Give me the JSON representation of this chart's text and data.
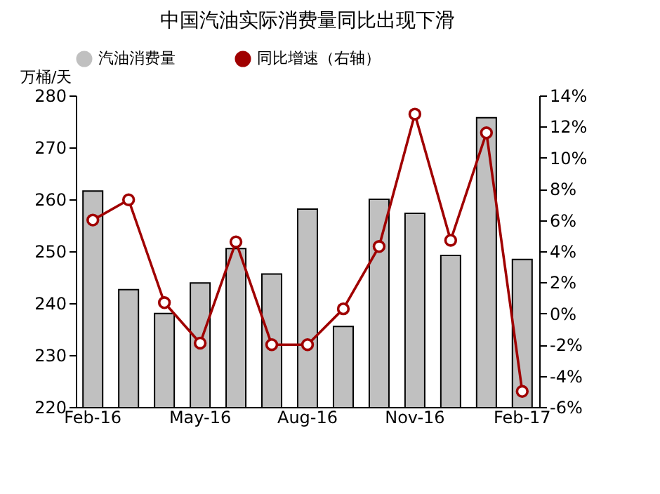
{
  "chart_data": {
    "type": "bar",
    "title": "中国汽油实际消费量同比出现下滑",
    "categories": [
      "Feb-16",
      null,
      null,
      "May-16",
      null,
      null,
      "Aug-16",
      null,
      null,
      "Nov-16",
      null,
      null,
      "Feb-17"
    ],
    "series": [
      {
        "name": "汽油消费量",
        "color": "#c0c0c0",
        "values": [
          261.6,
          242.6,
          238.0,
          243.9,
          250.5,
          245.6,
          258.1,
          235.5,
          260.0,
          257.3,
          249.2,
          275.7,
          248.4
        ]
      },
      {
        "name": "同比增速（右轴）",
        "type": "line",
        "axis": "y2",
        "color": "#a00000",
        "values": [
          6.0,
          7.3,
          0.7,
          -1.9,
          4.6,
          -2.0,
          -2.0,
          0.3,
          4.3,
          12.8,
          4.7,
          11.6,
          -5.0
        ]
      }
    ],
    "ylabel": "万桶/天",
    "ylim": [
      220,
      280
    ],
    "yticks": [
      220,
      230,
      240,
      250,
      260,
      270,
      280
    ],
    "y2lim": [
      -6,
      14
    ],
    "y2ticks": [
      {
        "value": -6,
        "label": "-6%"
      },
      {
        "value": -4,
        "label": "-4%"
      },
      {
        "value": -2,
        "label": "-2%"
      },
      {
        "value": 0,
        "label": "0%"
      },
      {
        "value": 2,
        "label": "2%"
      },
      {
        "value": 4,
        "label": "4%"
      },
      {
        "value": 6,
        "label": "6%"
      },
      {
        "value": 8,
        "label": "8%"
      },
      {
        "value": 10,
        "label": "10%"
      },
      {
        "value": 12,
        "label": "12%"
      },
      {
        "value": 14,
        "label": "14%"
      }
    ],
    "legend": "top",
    "marker": "circle"
  }
}
